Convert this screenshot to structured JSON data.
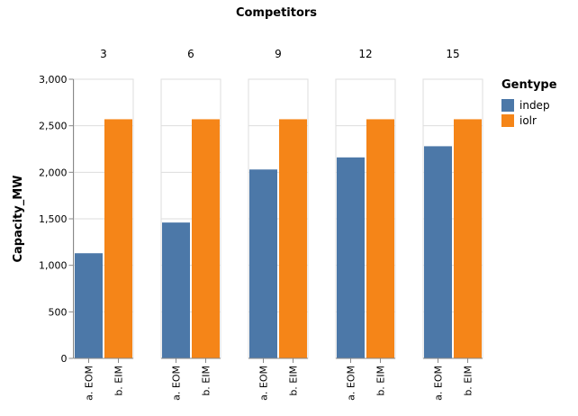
{
  "chart_data": {
    "type": "bar",
    "title": "Competitors",
    "ylabel": "Capacity_MW",
    "xlabel": "",
    "ylim": [
      0,
      3000
    ],
    "yticks": [
      0,
      500,
      1000,
      1500,
      2000,
      2500,
      3000
    ],
    "ytick_labels": [
      "0",
      "500",
      "1,000",
      "1,500",
      "2,000",
      "2,500",
      "3,000"
    ],
    "grid": true,
    "legend": {
      "title": "Gentype",
      "position": "top-right",
      "entries": [
        {
          "name": "indep",
          "color": "#4c78a8"
        },
        {
          "name": "iolr",
          "color": "#f58518"
        }
      ]
    },
    "facets": [
      "3",
      "6",
      "9",
      "12",
      "15"
    ],
    "categories": [
      "a. EOM",
      "b. EIM"
    ],
    "bars": [
      {
        "facet": "3",
        "category": "a. EOM",
        "gentype": "indep",
        "value": 1130
      },
      {
        "facet": "3",
        "category": "b. EIM",
        "gentype": "iolr",
        "value": 2570
      },
      {
        "facet": "6",
        "category": "a. EOM",
        "gentype": "indep",
        "value": 1460
      },
      {
        "facet": "6",
        "category": "b. EIM",
        "gentype": "iolr",
        "value": 2570
      },
      {
        "facet": "9",
        "category": "a. EOM",
        "gentype": "indep",
        "value": 2030
      },
      {
        "facet": "9",
        "category": "b. EIM",
        "gentype": "iolr",
        "value": 2570
      },
      {
        "facet": "12",
        "category": "a. EOM",
        "gentype": "indep",
        "value": 2160
      },
      {
        "facet": "12",
        "category": "b. EIM",
        "gentype": "iolr",
        "value": 2570
      },
      {
        "facet": "15",
        "category": "a. EOM",
        "gentype": "indep",
        "value": 2280
      },
      {
        "facet": "15",
        "category": "b. EIM",
        "gentype": "iolr",
        "value": 2570
      }
    ]
  }
}
